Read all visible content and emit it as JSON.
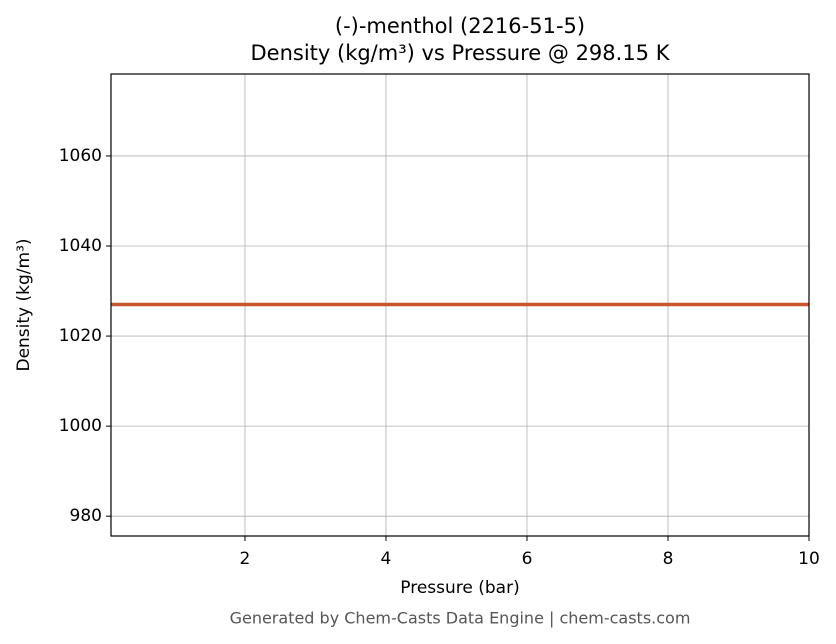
{
  "chart_data": {
    "type": "line",
    "title": "(-)-menthol (2216-51-5)",
    "subtitle": "Density (kg/m³) vs Pressure @ 298.15 K",
    "x_label": "Pressure (bar)",
    "y_label": "Density (kg/m³)",
    "x": [
      0.1,
      10
    ],
    "series": [
      {
        "name": "Density",
        "color": "#c8552b",
        "values": [
          1027,
          1027
        ]
      }
    ],
    "xlim": [
      0.1,
      10
    ],
    "xticks": [
      2,
      4,
      6,
      8,
      10
    ],
    "ylim": [
      975.6,
      1078.2
    ],
    "yticks": [
      980,
      1000,
      1020,
      1040,
      1060
    ],
    "grid": true,
    "footer": "Generated by Chem-Casts Data Engine | chem-casts.com"
  }
}
